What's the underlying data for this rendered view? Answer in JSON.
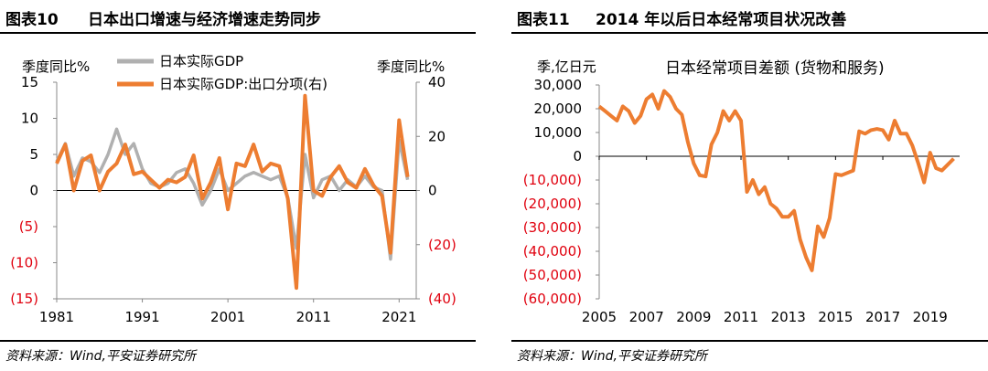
{
  "colors": {
    "orange": "#ed7d31",
    "gray": "#b0b0b0",
    "red": "#e0000e",
    "axis": "#888888"
  },
  "left": {
    "figure_label": "图表10",
    "title": "日本出口增速与经济增速走势同步",
    "source": "资料来源：Wind,平安证券研究所",
    "chart_data": {
      "type": "line",
      "xlabel_ticks": [
        "1981",
        "1991",
        "2001",
        "2011",
        "2021"
      ],
      "x_range": [
        1981,
        2023
      ],
      "y_left": {
        "label": "季度同比%",
        "range": [
          -15,
          15
        ],
        "ticks": [
          "15",
          "10",
          "5",
          "0",
          "(5)",
          "(10)",
          "(15)"
        ],
        "tick_values": [
          15,
          10,
          5,
          0,
          -5,
          -10,
          -15
        ]
      },
      "y_right": {
        "label": "季度同比%",
        "range": [
          -40,
          40
        ],
        "ticks": [
          "40",
          "20",
          "0",
          "(20)",
          "(40)"
        ],
        "tick_values": [
          40,
          20,
          0,
          -20,
          -40
        ]
      },
      "legend": [
        "日本实际GDP",
        "日本实际GDP:出口分项(右)"
      ],
      "series": [
        {
          "name": "日本实际GDP",
          "axis": "left",
          "color": "gray",
          "points": [
            [
              1981,
              4
            ],
            [
              1982,
              6.5
            ],
            [
              1983,
              2
            ],
            [
              1984,
              4.5
            ],
            [
              1985,
              4
            ],
            [
              1986,
              2.5
            ],
            [
              1987,
              5
            ],
            [
              1988,
              8.5
            ],
            [
              1989,
              5
            ],
            [
              1990,
              6.5
            ],
            [
              1991,
              3
            ],
            [
              1992,
              1
            ],
            [
              1993,
              0.5
            ],
            [
              1994,
              1
            ],
            [
              1995,
              2.5
            ],
            [
              1996,
              3
            ],
            [
              1997,
              1
            ],
            [
              1998,
              -2
            ],
            [
              1999,
              0
            ],
            [
              2000,
              3
            ],
            [
              2001,
              0
            ],
            [
              2002,
              1
            ],
            [
              2003,
              2
            ],
            [
              2004,
              2.5
            ],
            [
              2005,
              2
            ],
            [
              2006,
              1.5
            ],
            [
              2007,
              2
            ],
            [
              2008,
              -1
            ],
            [
              2009,
              -8
            ],
            [
              2010,
              5
            ],
            [
              2011,
              -1
            ],
            [
              2012,
              1.5
            ],
            [
              2013,
              2
            ],
            [
              2014,
              0
            ],
            [
              2015,
              1.5
            ],
            [
              2016,
              0.5
            ],
            [
              2017,
              2
            ],
            [
              2018,
              0.5
            ],
            [
              2019,
              0
            ],
            [
              2020,
              -9.5
            ],
            [
              2021,
              7
            ],
            [
              2022,
              1.5
            ]
          ]
        },
        {
          "name": "日本实际GDP:出口分项(右)",
          "axis": "right",
          "color": "orange",
          "points": [
            [
              1981,
              10
            ],
            [
              1982,
              17
            ],
            [
              1983,
              0
            ],
            [
              1984,
              11
            ],
            [
              1985,
              13
            ],
            [
              1986,
              0
            ],
            [
              1987,
              7
            ],
            [
              1988,
              10
            ],
            [
              1989,
              17
            ],
            [
              1990,
              6
            ],
            [
              1991,
              7
            ],
            [
              1992,
              4
            ],
            [
              1993,
              1
            ],
            [
              1994,
              4
            ],
            [
              1995,
              3
            ],
            [
              1996,
              5
            ],
            [
              1997,
              13
            ],
            [
              1998,
              -3
            ],
            [
              1999,
              3
            ],
            [
              2000,
              12
            ],
            [
              2001,
              -7
            ],
            [
              2002,
              10
            ],
            [
              2003,
              9
            ],
            [
              2004,
              17
            ],
            [
              2005,
              7
            ],
            [
              2006,
              10
            ],
            [
              2007,
              9
            ],
            [
              2008,
              -3
            ],
            [
              2009,
              -36
            ],
            [
              2010,
              35
            ],
            [
              2011,
              0
            ],
            [
              2012,
              -2
            ],
            [
              2013,
              5
            ],
            [
              2014,
              9
            ],
            [
              2015,
              3
            ],
            [
              2016,
              1
            ],
            [
              2017,
              8
            ],
            [
              2018,
              2
            ],
            [
              2019,
              -2
            ],
            [
              2020,
              -23
            ],
            [
              2021,
              26
            ],
            [
              2022,
              5
            ]
          ]
        }
      ]
    }
  },
  "right": {
    "figure_label": "图表11",
    "title": "2014 年以后日本经常项目状况改善",
    "source": "资料来源：Wind,平安证券研究所",
    "chart_data": {
      "type": "line",
      "title": "日本经常项目差额 (货物和服务)",
      "ylabel": "季,亿日元",
      "x_range": [
        2005,
        2020.25
      ],
      "xlabel_ticks": [
        "2005",
        "2007",
        "2009",
        "2011",
        "2013",
        "2015",
        "2017",
        "2019"
      ],
      "xtick_values": [
        2005,
        2007,
        2009,
        2011,
        2013,
        2015,
        2017,
        2019
      ],
      "ylim": [
        -60000,
        30000
      ],
      "yticks": [
        "30,000",
        "20,000",
        "10,000",
        "0",
        "(10,000)",
        "(20,000)",
        "(30,000)",
        "(40,000)",
        "(50,000)",
        "(60,000)"
      ],
      "ytick_values": [
        30000,
        20000,
        10000,
        0,
        -10000,
        -20000,
        -30000,
        -40000,
        -50000,
        -60000
      ],
      "series": [
        {
          "name": "日本经常项目差额",
          "color": "orange",
          "points": [
            [
              2005,
              21000
            ],
            [
              2005.25,
              19000
            ],
            [
              2005.5,
              17000
            ],
            [
              2005.75,
              15000
            ],
            [
              2006,
              21000
            ],
            [
              2006.25,
              19000
            ],
            [
              2006.5,
              14000
            ],
            [
              2006.75,
              17000
            ],
            [
              2007,
              24000
            ],
            [
              2007.25,
              26000
            ],
            [
              2007.5,
              20000
            ],
            [
              2007.75,
              27500
            ],
            [
              2008,
              25000
            ],
            [
              2008.25,
              20000
            ],
            [
              2008.5,
              17500
            ],
            [
              2008.75,
              6000
            ],
            [
              2009,
              -3000
            ],
            [
              2009.25,
              -8000
            ],
            [
              2009.5,
              -8500
            ],
            [
              2009.75,
              5000
            ],
            [
              2010,
              10000
            ],
            [
              2010.25,
              19000
            ],
            [
              2010.5,
              15000
            ],
            [
              2010.75,
              19000
            ],
            [
              2011,
              15000
            ],
            [
              2011.25,
              -15000
            ],
            [
              2011.5,
              -10000
            ],
            [
              2011.75,
              -16000
            ],
            [
              2012,
              -13000
            ],
            [
              2012.25,
              -20000
            ],
            [
              2012.5,
              -22000
            ],
            [
              2012.75,
              -25500
            ],
            [
              2013,
              -25500
            ],
            [
              2013.25,
              -23000
            ],
            [
              2013.5,
              -35000
            ],
            [
              2013.75,
              -42500
            ],
            [
              2014,
              -48000
            ],
            [
              2014.25,
              -29500
            ],
            [
              2014.5,
              -34000
            ],
            [
              2014.75,
              -26000
            ],
            [
              2015,
              -7500
            ],
            [
              2015.25,
              -8000
            ],
            [
              2015.5,
              -7000
            ],
            [
              2015.75,
              -6000
            ],
            [
              2016,
              10500
            ],
            [
              2016.25,
              9500
            ],
            [
              2016.5,
              11000
            ],
            [
              2016.75,
              11500
            ],
            [
              2017,
              11000
            ],
            [
              2017.25,
              7000
            ],
            [
              2017.5,
              15000
            ],
            [
              2017.75,
              9500
            ],
            [
              2018,
              9500
            ],
            [
              2018.25,
              4500
            ],
            [
              2018.5,
              -3000
            ],
            [
              2018.75,
              -11000
            ],
            [
              2019,
              1500
            ],
            [
              2019.25,
              -5000
            ],
            [
              2019.5,
              -6000
            ],
            [
              2019.75,
              -3500
            ],
            [
              2020,
              -1000
            ]
          ]
        }
      ]
    }
  }
}
